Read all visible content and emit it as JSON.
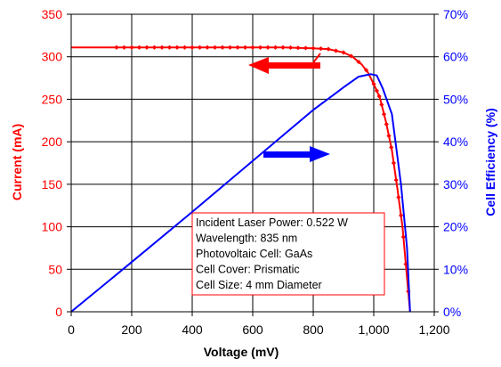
{
  "chart_data": {
    "type": "line",
    "title": "",
    "xlabel": "Voltage (mV)",
    "ylabel_left": "Current (mA)",
    "ylabel_right": "Cell Efficiency (%)",
    "xlim": [
      0,
      1200
    ],
    "ylim_left": [
      0,
      350
    ],
    "ylim_right": [
      0,
      70
    ],
    "x_ticks": [
      "0",
      "200",
      "400",
      "600",
      "800",
      "1,000",
      "1,200"
    ],
    "y_left_ticks": [
      "0",
      "50",
      "100",
      "150",
      "200",
      "250",
      "300",
      "350"
    ],
    "y_right_ticks": [
      "0%",
      "10%",
      "20%",
      "30%",
      "40%",
      "50%",
      "60%",
      "70%"
    ],
    "grid": true,
    "colors": {
      "current": "#ff0000",
      "efficiency": "#0000ff"
    },
    "series": [
      {
        "axis": "left",
        "color": "#ff0000",
        "marker": "diamond",
        "x": [
          0,
          150,
          300,
          450,
          600,
          700,
          800,
          850,
          900,
          930,
          960,
          980,
          1000,
          1020,
          1040,
          1060,
          1080,
          1095,
          1105,
          1115,
          1120
        ],
        "y": [
          311,
          311,
          311,
          311,
          311,
          311,
          310,
          309,
          305,
          300,
          291,
          282,
          268,
          252,
          224,
          190,
          140,
          100,
          60,
          20,
          0
        ]
      },
      {
        "axis": "right",
        "x": [
          0,
          200,
          400,
          600,
          800,
          900,
          950,
          990,
          1010,
          1030,
          1060,
          1090,
          1110,
          1120
        ],
        "y": [
          0,
          11.7,
          23.5,
          35.5,
          47.5,
          52.8,
          55.3,
          55.9,
          55.6,
          52.5,
          46.5,
          30,
          15,
          0
        ]
      }
    ],
    "annotations": [
      "Incident Laser Power:  0.522 W",
      "Wavelength:  835 nm",
      "Photovoltaic Cell:  GaAs",
      "Cell Cover:  Prismatic",
      "Cell Size:  4 mm Diameter"
    ]
  }
}
